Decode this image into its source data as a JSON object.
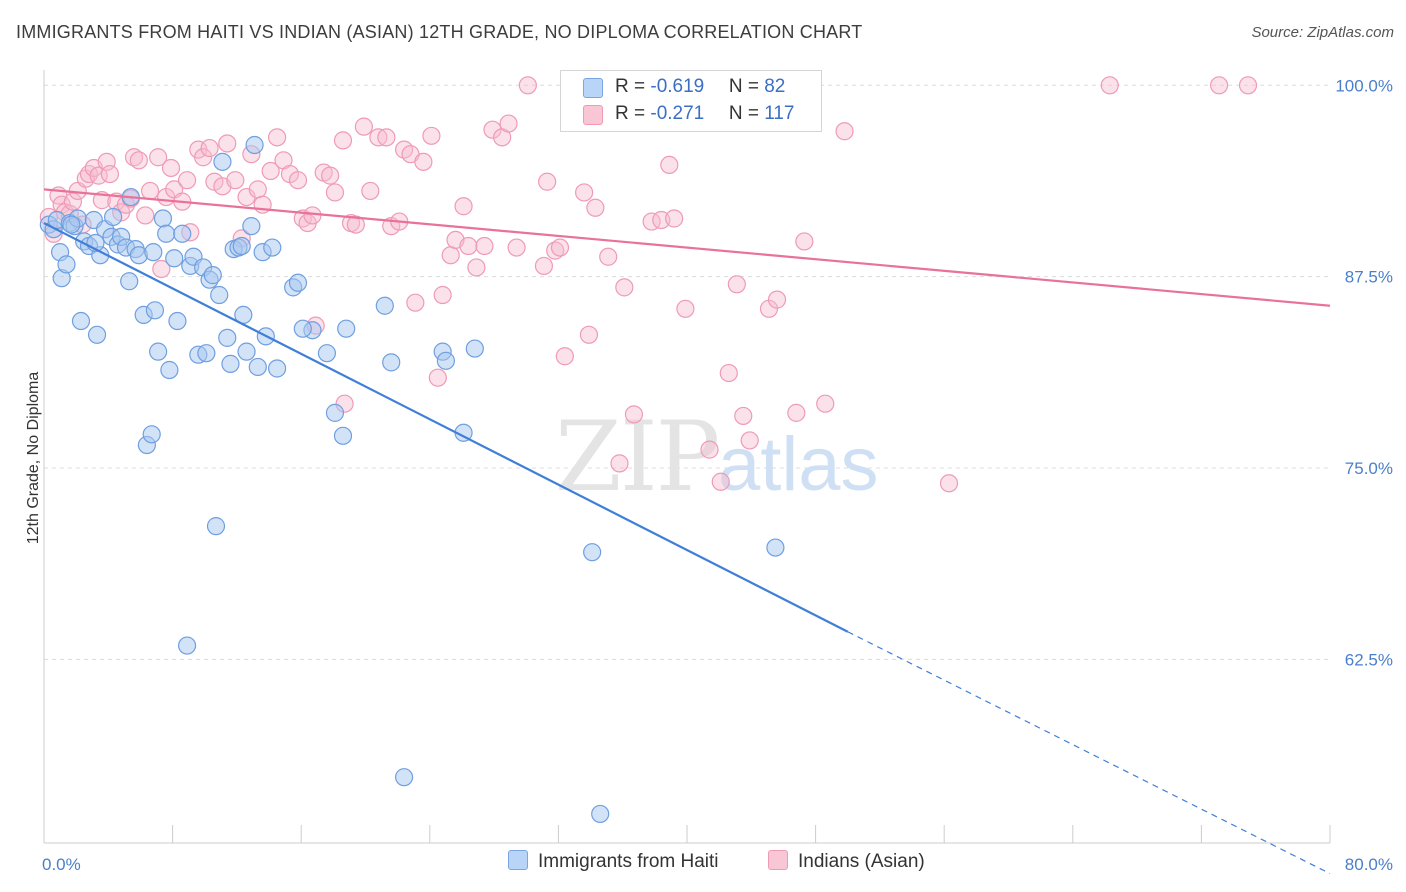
{
  "title": "IMMIGRANTS FROM HAITI VS INDIAN (ASIAN) 12TH GRADE, NO DIPLOMA CORRELATION CHART",
  "source": "Source: ZipAtlas.com",
  "watermark": {
    "zip": "ZIP",
    "atlas": "atlas"
  },
  "legend": {
    "rows": [
      {
        "r_label": "R = ",
        "r_value": "-0.619",
        "n_label": "N = ",
        "n_value": "82"
      },
      {
        "r_label": "R = ",
        "r_value": "-0.271",
        "n_label": "N = ",
        "n_value": "117"
      }
    ]
  },
  "colors": {
    "haiti_fill": "#a8c8f0",
    "haiti_stroke": "#6f9fe0",
    "haiti_line": "#3f7fd8",
    "indian_fill": "#f7bccf",
    "indian_stroke": "#ef9ab6",
    "indian_line": "#e8729a",
    "tick": "#4a7fcb",
    "grid": "#dcdcdc"
  },
  "chart_data": {
    "type": "scatter",
    "xlabel": "",
    "ylabel": "12th Grade, No Diploma",
    "xlim": [
      0,
      80
    ],
    "ylim": [
      50.5,
      101
    ],
    "x_tick_labels": [
      {
        "value": 0,
        "label": "0.0%"
      },
      {
        "value": 80,
        "label": "80.0%"
      }
    ],
    "y_tick_labels": [
      {
        "value": 100,
        "label": "100.0%"
      },
      {
        "value": 87.5,
        "label": "87.5%"
      },
      {
        "value": 75,
        "label": "75.0%"
      },
      {
        "value": 62.5,
        "label": "62.5%"
      }
    ],
    "x_minor_ticks": [
      0,
      8,
      16,
      24,
      32,
      40,
      48,
      56,
      64,
      72,
      80
    ],
    "series": [
      {
        "name": "Immigrants from Haiti",
        "trend": {
          "x": [
            0,
            50
          ],
          "y": [
            91.0,
            64.3
          ],
          "dashed_to": [
            80,
            48.5
          ]
        },
        "points": [
          [
            0.3,
            90.9
          ],
          [
            0.6,
            90.6
          ],
          [
            0.8,
            91.2
          ],
          [
            1.0,
            89.1
          ],
          [
            1.1,
            87.4
          ],
          [
            1.4,
            88.3
          ],
          [
            1.6,
            91.0
          ],
          [
            1.9,
            90.8
          ],
          [
            2.1,
            91.3
          ],
          [
            2.3,
            84.6
          ],
          [
            2.5,
            89.8
          ],
          [
            2.8,
            89.5
          ],
          [
            3.1,
            91.2
          ],
          [
            3.3,
            83.7
          ],
          [
            3.5,
            88.9
          ],
          [
            3.8,
            90.6
          ],
          [
            4.2,
            90.1
          ],
          [
            4.3,
            91.4
          ],
          [
            4.6,
            89.6
          ],
          [
            4.8,
            90.1
          ],
          [
            5.1,
            89.4
          ],
          [
            5.3,
            87.2
          ],
          [
            5.4,
            92.7
          ],
          [
            5.7,
            89.3
          ],
          [
            5.9,
            88.9
          ],
          [
            6.2,
            85.0
          ],
          [
            6.4,
            76.5
          ],
          [
            6.7,
            77.2
          ],
          [
            6.9,
            85.3
          ],
          [
            7.1,
            82.6
          ],
          [
            7.4,
            91.3
          ],
          [
            7.6,
            90.3
          ],
          [
            7.8,
            81.4
          ],
          [
            8.1,
            88.7
          ],
          [
            8.3,
            84.6
          ],
          [
            8.6,
            90.3
          ],
          [
            8.9,
            63.4
          ],
          [
            9.1,
            88.2
          ],
          [
            9.3,
            88.8
          ],
          [
            9.6,
            82.4
          ],
          [
            9.9,
            88.1
          ],
          [
            10.1,
            82.5
          ],
          [
            10.3,
            87.3
          ],
          [
            10.5,
            87.6
          ],
          [
            10.7,
            71.2
          ],
          [
            10.9,
            86.3
          ],
          [
            11.1,
            95.0
          ],
          [
            11.4,
            83.5
          ],
          [
            11.6,
            81.8
          ],
          [
            11.8,
            89.3
          ],
          [
            12.1,
            89.4
          ],
          [
            12.4,
            85.0
          ],
          [
            12.6,
            82.6
          ],
          [
            12.9,
            90.8
          ],
          [
            13.1,
            96.1
          ],
          [
            13.3,
            81.6
          ],
          [
            13.6,
            89.1
          ],
          [
            13.8,
            83.6
          ],
          [
            14.2,
            89.4
          ],
          [
            14.5,
            81.5
          ],
          [
            15.5,
            86.8
          ],
          [
            15.8,
            87.1
          ],
          [
            16.7,
            84.0
          ],
          [
            17.6,
            82.5
          ],
          [
            18.1,
            78.6
          ],
          [
            18.6,
            77.1
          ],
          [
            18.8,
            84.1
          ],
          [
            21.2,
            85.6
          ],
          [
            21.6,
            81.9
          ],
          [
            22.4,
            54.8
          ],
          [
            24.8,
            82.6
          ],
          [
            25.0,
            82.0
          ],
          [
            26.1,
            77.3
          ],
          [
            26.8,
            82.8
          ],
          [
            34.1,
            69.5
          ],
          [
            34.6,
            52.4
          ],
          [
            45.5,
            69.8
          ],
          [
            3.2,
            89.7
          ],
          [
            6.8,
            89.1
          ],
          [
            12.3,
            89.5
          ],
          [
            16.1,
            84.1
          ],
          [
            1.7,
            90.9
          ]
        ]
      },
      {
        "name": "Indians (Asian)",
        "trend": {
          "x": [
            0,
            80
          ],
          "y": [
            93.2,
            85.6
          ]
        },
        "points": [
          [
            0.3,
            91.4
          ],
          [
            0.6,
            90.3
          ],
          [
            0.9,
            92.8
          ],
          [
            1.1,
            92.2
          ],
          [
            1.3,
            91.7
          ],
          [
            1.6,
            91.6
          ],
          [
            1.8,
            92.4
          ],
          [
            2.1,
            93.1
          ],
          [
            2.4,
            90.9
          ],
          [
            2.6,
            93.9
          ],
          [
            2.8,
            94.2
          ],
          [
            3.1,
            94.6
          ],
          [
            3.4,
            94.1
          ],
          [
            3.6,
            92.5
          ],
          [
            3.9,
            95.0
          ],
          [
            4.1,
            94.2
          ],
          [
            4.5,
            92.4
          ],
          [
            4.8,
            91.7
          ],
          [
            5.1,
            92.2
          ],
          [
            5.4,
            92.6
          ],
          [
            5.6,
            95.3
          ],
          [
            5.9,
            95.1
          ],
          [
            6.3,
            91.5
          ],
          [
            6.6,
            93.1
          ],
          [
            7.1,
            95.3
          ],
          [
            7.3,
            88.0
          ],
          [
            7.6,
            92.7
          ],
          [
            7.9,
            94.6
          ],
          [
            8.1,
            93.2
          ],
          [
            8.6,
            92.4
          ],
          [
            8.9,
            93.8
          ],
          [
            9.1,
            90.4
          ],
          [
            9.6,
            95.8
          ],
          [
            9.9,
            95.3
          ],
          [
            10.3,
            95.9
          ],
          [
            10.6,
            93.7
          ],
          [
            11.1,
            93.4
          ],
          [
            11.4,
            96.2
          ],
          [
            11.9,
            93.8
          ],
          [
            12.3,
            90.0
          ],
          [
            12.6,
            92.7
          ],
          [
            12.9,
            95.5
          ],
          [
            13.3,
            93.2
          ],
          [
            13.6,
            92.2
          ],
          [
            14.1,
            94.4
          ],
          [
            14.5,
            96.6
          ],
          [
            14.9,
            95.1
          ],
          [
            15.3,
            94.2
          ],
          [
            15.8,
            93.8
          ],
          [
            16.1,
            91.3
          ],
          [
            16.4,
            91.0
          ],
          [
            16.7,
            91.5
          ],
          [
            16.9,
            84.3
          ],
          [
            17.4,
            94.3
          ],
          [
            17.8,
            94.1
          ],
          [
            18.1,
            93.0
          ],
          [
            18.6,
            96.4
          ],
          [
            18.7,
            79.2
          ],
          [
            19.1,
            91.0
          ],
          [
            19.4,
            90.9
          ],
          [
            19.9,
            97.3
          ],
          [
            20.3,
            93.1
          ],
          [
            20.8,
            96.6
          ],
          [
            21.3,
            96.6
          ],
          [
            21.6,
            90.8
          ],
          [
            22.1,
            91.1
          ],
          [
            22.4,
            95.8
          ],
          [
            22.8,
            95.5
          ],
          [
            23.1,
            85.8
          ],
          [
            23.6,
            95.0
          ],
          [
            24.1,
            96.7
          ],
          [
            24.5,
            80.9
          ],
          [
            24.8,
            86.3
          ],
          [
            25.3,
            88.9
          ],
          [
            25.6,
            89.9
          ],
          [
            26.1,
            92.1
          ],
          [
            26.4,
            89.5
          ],
          [
            26.9,
            88.1
          ],
          [
            27.4,
            89.5
          ],
          [
            27.9,
            97.1
          ],
          [
            28.5,
            96.6
          ],
          [
            28.9,
            97.5
          ],
          [
            29.4,
            89.4
          ],
          [
            30.1,
            100.0
          ],
          [
            31.1,
            88.2
          ],
          [
            31.3,
            93.7
          ],
          [
            31.8,
            89.2
          ],
          [
            32.1,
            89.4
          ],
          [
            32.4,
            82.3
          ],
          [
            33.6,
            93.0
          ],
          [
            33.9,
            83.7
          ],
          [
            34.3,
            92.0
          ],
          [
            35.1,
            88.8
          ],
          [
            35.8,
            75.3
          ],
          [
            36.1,
            86.8
          ],
          [
            36.7,
            78.5
          ],
          [
            37.8,
            91.1
          ],
          [
            38.4,
            91.2
          ],
          [
            38.9,
            94.8
          ],
          [
            39.2,
            91.3
          ],
          [
            39.9,
            85.4
          ],
          [
            41.4,
            76.2
          ],
          [
            42.1,
            74.1
          ],
          [
            42.6,
            81.2
          ],
          [
            43.1,
            87.0
          ],
          [
            43.5,
            78.4
          ],
          [
            43.9,
            76.8
          ],
          [
            45.1,
            85.4
          ],
          [
            45.6,
            86.0
          ],
          [
            46.8,
            78.6
          ],
          [
            47.3,
            89.8
          ],
          [
            48.6,
            79.2
          ],
          [
            49.8,
            97.0
          ],
          [
            56.3,
            74.0
          ],
          [
            66.3,
            100.0
          ],
          [
            73.1,
            100.0
          ],
          [
            74.9,
            100.0
          ]
        ]
      }
    ]
  }
}
